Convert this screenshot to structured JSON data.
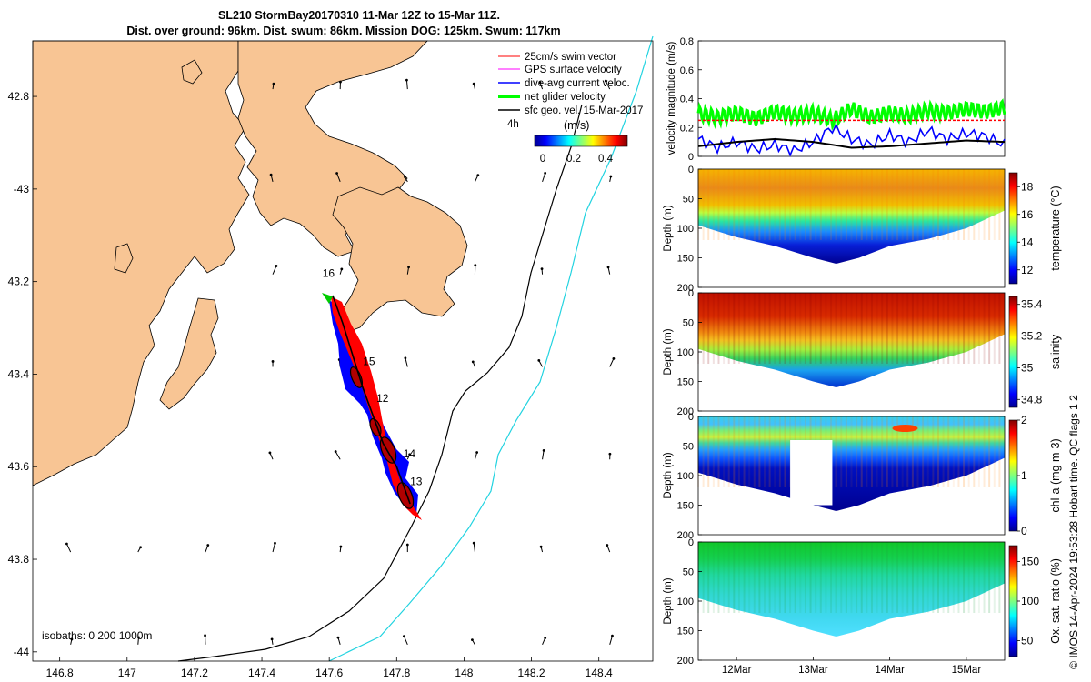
{
  "header": {
    "title_line1": "SL210 StormBay20170310 11-Mar 12Z to 15-Mar 11Z.",
    "title_line2": "Dist. over ground: 96km. Dist. swum: 86km. Mission DOG: 125km. Swum: 117km"
  },
  "colors": {
    "land": "#f8c594",
    "track_fill": "#0000ff",
    "swim_vector": "#ff0000",
    "gps_velocity": "#ff00ff",
    "current_veloc": "#0000ff",
    "net_velocity": "#00ff00",
    "geo_vel": "#000000",
    "isobath_200": "#000000",
    "isobath_1000": "#22d3e0"
  },
  "chart_data": [
    {
      "type": "map",
      "xlim": [
        146.72,
        148.56
      ],
      "ylim": [
        -44.02,
        -42.68
      ],
      "xticks": [
        146.8,
        147,
        147.2,
        147.4,
        147.6,
        147.8,
        148,
        148.2,
        148.4
      ],
      "xtick_labels": [
        "146.8",
        "147",
        "147.2",
        "147.4",
        "147.6",
        "147.8",
        "148",
        "148.2",
        "148.4"
      ],
      "yticks": [
        -42.8,
        -43,
        -43.2,
        -43.4,
        -43.6,
        -43.8,
        -44
      ],
      "ytick_labels": [
        "42.8",
        "-43",
        "43.2",
        "43.4",
        "43.6",
        "43.8",
        "-44"
      ],
      "legend": [
        {
          "label": "25cm/s swim vector",
          "color": "#ff0000"
        },
        {
          "label": "GPS surface velocity",
          "color": "#ff00ff"
        },
        {
          "label": "dive-avg current veloc.",
          "color": "#0000ff"
        },
        {
          "label": "net glider velocity",
          "color": "#00cc00"
        },
        {
          "label": "sfc geo. vel. 15-Mar-2017",
          "color": "#000000"
        }
      ],
      "legend_placement": "top-right",
      "colorbar": {
        "label": "(m/s)",
        "ticks": [
          "0",
          "0.2",
          "0.4"
        ],
        "range": [
          0,
          0.5
        ],
        "note": "4h"
      },
      "isobath_label": "isobaths: 0   200  1000m",
      "day_labels": [
        {
          "text": "16",
          "lon": 147.58,
          "lat": -43.19
        },
        {
          "text": "15",
          "lon": 147.7,
          "lat": -43.38
        },
        {
          "text": "12",
          "lon": 147.74,
          "lat": -43.46
        },
        {
          "text": "14",
          "lon": 147.82,
          "lat": -43.58
        },
        {
          "text": "13",
          "lon": 147.84,
          "lat": -43.64
        }
      ],
      "track": [
        [
          147.61,
          -43.23
        ],
        [
          147.64,
          -43.29
        ],
        [
          147.67,
          -43.36
        ],
        [
          147.7,
          -43.43
        ],
        [
          147.73,
          -43.49
        ],
        [
          147.76,
          -43.55
        ],
        [
          147.8,
          -43.6
        ],
        [
          147.83,
          -43.66
        ],
        [
          147.84,
          -43.68
        ]
      ]
    },
    {
      "type": "line",
      "ylabel": "velocity magnitude (m/s)",
      "ylim": [
        0,
        0.8
      ],
      "yticks": [
        "0",
        "0.2",
        "0.4",
        "0.6",
        "0.8"
      ],
      "xlim": [
        11.5,
        15.5
      ],
      "series": [
        {
          "name": "net glider velocity",
          "color": "#00ff00",
          "x": [
            11.5,
            11.75,
            12.0,
            12.25,
            12.5,
            12.75,
            13.0,
            13.25,
            13.5,
            13.75,
            14.0,
            14.25,
            14.5,
            14.75,
            15.0,
            15.25,
            15.5
          ],
          "values": [
            0.3,
            0.27,
            0.3,
            0.26,
            0.31,
            0.28,
            0.3,
            0.25,
            0.33,
            0.27,
            0.3,
            0.28,
            0.32,
            0.3,
            0.33,
            0.31,
            0.34
          ]
        },
        {
          "name": "dive-avg current veloc.",
          "color": "#0000ff",
          "x": [
            11.5,
            11.75,
            12.0,
            12.25,
            12.5,
            12.75,
            13.0,
            13.25,
            13.5,
            13.75,
            14.0,
            14.25,
            14.5,
            14.75,
            15.0,
            15.25,
            15.5
          ],
          "values": [
            0.12,
            0.06,
            0.1,
            0.05,
            0.08,
            0.04,
            0.1,
            0.2,
            0.12,
            0.08,
            0.15,
            0.1,
            0.18,
            0.12,
            0.16,
            0.14,
            0.08
          ]
        },
        {
          "name": "sfc geo. vel.",
          "color": "#000000",
          "x": [
            11.5,
            12.0,
            12.5,
            13.0,
            13.5,
            14.0,
            14.5,
            15.0,
            15.5
          ],
          "values": [
            0.07,
            0.1,
            0.12,
            0.1,
            0.06,
            0.07,
            0.09,
            0.11,
            0.1
          ]
        },
        {
          "name": "swim speed",
          "color": "#ff0000",
          "x": [
            11.5,
            15.5
          ],
          "values": [
            0.25,
            0.25
          ]
        }
      ]
    },
    {
      "type": "heatmap",
      "variable": "temperature",
      "colorbar_label": "temperature (°C)",
      "colorbar_ticks": [
        "12",
        "14",
        "16",
        "18"
      ],
      "crange": [
        11,
        19
      ],
      "ylabel": "Depth (m)",
      "ylim": [
        200,
        0
      ],
      "yticks": [
        "0",
        "50",
        "100",
        "150",
        "200"
      ],
      "profile_mean": [
        {
          "depth": 0,
          "value": 17.6
        },
        {
          "depth": 50,
          "value": 17.0
        },
        {
          "depth": 80,
          "value": 15.8
        },
        {
          "depth": 100,
          "value": 14.3
        },
        {
          "depth": 130,
          "value": 12.6
        },
        {
          "depth": 160,
          "value": 11.8
        }
      ]
    },
    {
      "type": "heatmap",
      "variable": "salinity",
      "colorbar_label": "salinity",
      "colorbar_ticks": [
        "34.8",
        "35",
        "35.2",
        "35.4"
      ],
      "crange": [
        34.75,
        35.45
      ],
      "ylabel": "Depth (m)",
      "ylim": [
        200,
        0
      ],
      "yticks": [
        "0",
        "50",
        "100",
        "150",
        "200"
      ],
      "profile_mean": [
        {
          "depth": 0,
          "value": 35.38
        },
        {
          "depth": 50,
          "value": 35.32
        },
        {
          "depth": 100,
          "value": 35.18
        },
        {
          "depth": 130,
          "value": 35.02
        },
        {
          "depth": 160,
          "value": 34.9
        }
      ]
    },
    {
      "type": "heatmap",
      "variable": "chl-a",
      "colorbar_label": "chl-a (mg m-3)",
      "colorbar_ticks": [
        "0",
        "1",
        "2"
      ],
      "crange": [
        0,
        2
      ],
      "ylabel": "Depth (m)",
      "ylim": [
        200,
        0
      ],
      "yticks": [
        "0",
        "50",
        "100",
        "150",
        "200"
      ],
      "profile_mean": [
        {
          "depth": 0,
          "value": 0.7
        },
        {
          "depth": 30,
          "value": 1.2
        },
        {
          "depth": 50,
          "value": 0.9
        },
        {
          "depth": 80,
          "value": 0.4
        },
        {
          "depth": 120,
          "value": 0.1
        }
      ]
    },
    {
      "type": "heatmap",
      "variable": "oxygen saturation",
      "colorbar_label": "Ox. sat. ratio (%)",
      "colorbar_ticks": [
        "50",
        "100",
        "150"
      ],
      "crange": [
        30,
        170
      ],
      "ylabel": "Depth (m)",
      "ylim": [
        200,
        0
      ],
      "yticks": [
        "0",
        "50",
        "100",
        "150",
        "200"
      ],
      "xtick_labels": [
        "12Mar",
        "13Mar",
        "14Mar",
        "15Mar"
      ],
      "profile_mean": [
        {
          "depth": 0,
          "value": 105
        },
        {
          "depth": 80,
          "value": 100
        },
        {
          "depth": 130,
          "value": 92
        },
        {
          "depth": 160,
          "value": 88
        }
      ]
    }
  ],
  "credit": "© IMOS 14-Apr-2024 19:53:28 Hobart time. QC flags 1  2"
}
